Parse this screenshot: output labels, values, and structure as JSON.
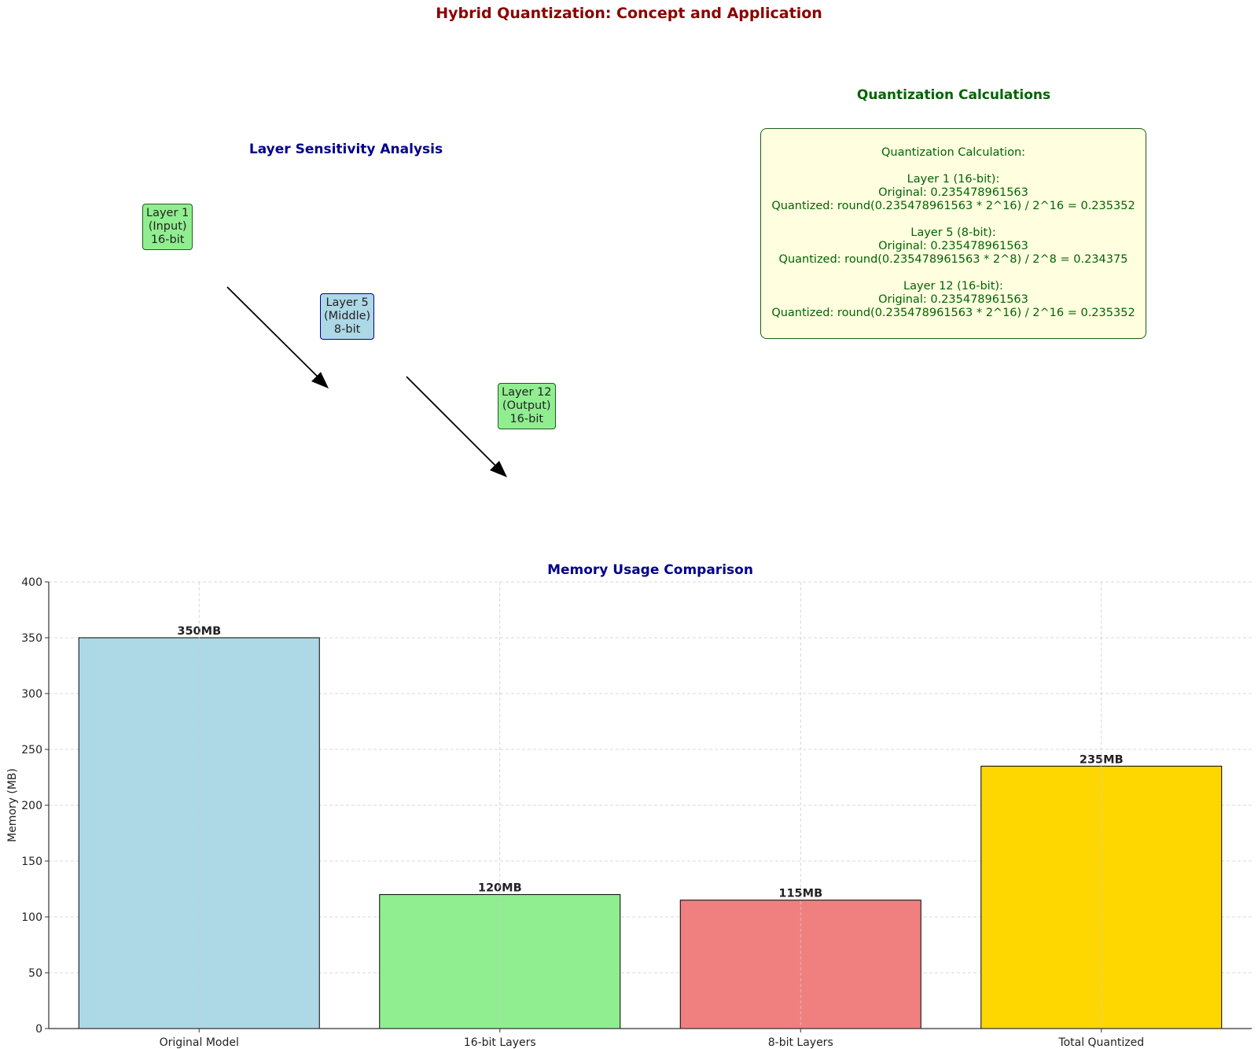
{
  "title": "Hybrid Quantization: Concept and Application",
  "sensitivity": {
    "title": "Layer Sensitivity Analysis",
    "title_color": "#00008b",
    "layers": [
      {
        "lines": [
          "Layer 1",
          "(Input)",
          "16-bit"
        ],
        "color": "#90ee90",
        "border": "#1a5e1a"
      },
      {
        "lines": [
          "Layer 5",
          "(Middle)",
          "8-bit"
        ],
        "color": "#add8e6",
        "border": "#00008b"
      },
      {
        "lines": [
          "Layer 12",
          "(Output)",
          "16-bit"
        ],
        "color": "#90ee90",
        "border": "#1a5e1a"
      }
    ]
  },
  "calculations": {
    "title": "Quantization Calculations",
    "title_color": "#006400",
    "background": "#ffffe0",
    "lines": [
      "Quantization Calculation:",
      "",
      "Layer 1 (16-bit):",
      "Original: 0.235478961563",
      "Quantized: round(0.235478961563 * 2^16) / 2^16 = 0.235352",
      "",
      "Layer 5 (8-bit):",
      "Original: 0.235478961563",
      "Quantized: round(0.235478961563 * 2^8) / 2^8 = 0.234375",
      "",
      "Layer 12 (16-bit):",
      "Original: 0.235478961563",
      "Quantized: round(0.235478961563 * 2^16) / 2^16 = 0.235352"
    ]
  },
  "chart_data": {
    "type": "bar",
    "title": "Memory Usage Comparison",
    "title_color": "#00008b",
    "categories": [
      "Original Model",
      "16-bit Layers",
      "8-bit Layers",
      "Total Quantized"
    ],
    "values": [
      350,
      120,
      115,
      235
    ],
    "data_labels": [
      "350MB",
      "120MB",
      "115MB",
      "235MB"
    ],
    "colors": [
      "#add8e6",
      "#90ee90",
      "#f08080",
      "#ffd700"
    ],
    "xlabel": "",
    "ylabel": "Memory (MB)",
    "ylim": [
      0,
      400
    ],
    "yticks": [
      0,
      50,
      100,
      150,
      200,
      250,
      300,
      350,
      400
    ],
    "grid": true
  }
}
